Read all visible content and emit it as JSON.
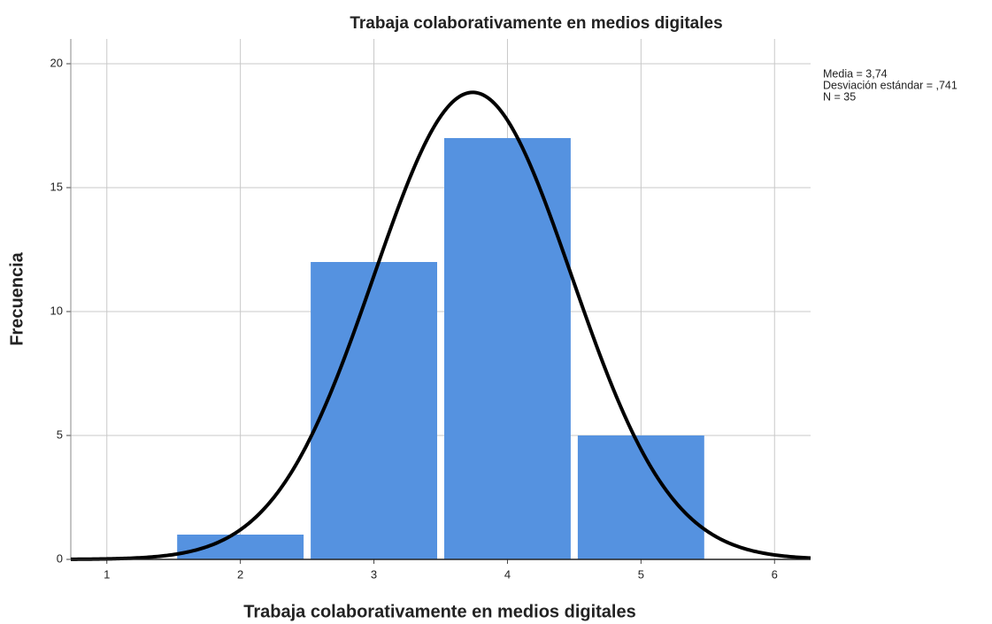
{
  "chart_data": {
    "type": "histogram",
    "title": "Trabaja colaborativamente en medios digitales",
    "xlabel": "Trabaja colaborativamente en medios digitales",
    "ylabel": "Frecuencia",
    "bins": [
      1.5,
      2.5,
      3.5,
      4.5,
      5.5
    ],
    "values": [
      1,
      12,
      17,
      5
    ],
    "color": "#5592e0",
    "curve_color": "#000000",
    "stats": [
      {
        "value": 3.74,
        "label": "Media = 3,74"
      },
      {
        "value": 0.741,
        "label": "Desviación estándar = ,741"
      },
      {
        "value": 35,
        "label": "N = 35"
      }
    ],
    "xlim": [
      0.73,
      6.27
    ],
    "ylim": [
      0,
      21
    ],
    "xticks": [
      1,
      2,
      3,
      4,
      5,
      6
    ],
    "yticks": [
      0,
      5,
      10,
      15,
      20
    ],
    "grid": true
  }
}
